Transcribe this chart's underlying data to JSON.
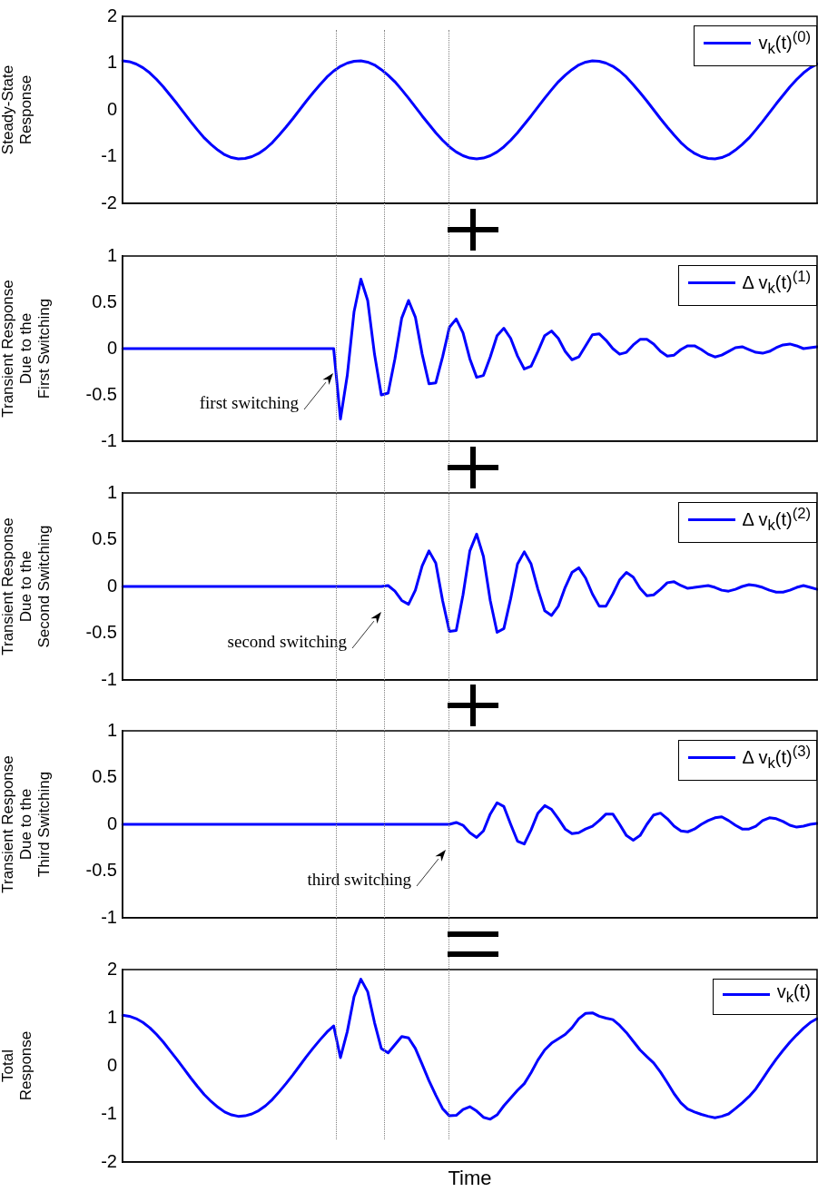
{
  "chart_data": [
    {
      "type": "line",
      "ylabel": "Steady-State\nResponse",
      "ylim": [
        -2,
        2
      ],
      "yticks": [
        -2,
        -1,
        0,
        1,
        2
      ],
      "legend": "top right",
      "categories": [
        null,
        null,
        null,
        null,
        null,
        null,
        null,
        null,
        null,
        null,
        null,
        null,
        null,
        null,
        null,
        null,
        null,
        null,
        null,
        null,
        null,
        null,
        null,
        null,
        null,
        null,
        null,
        null,
        null,
        null,
        null,
        null,
        null,
        null,
        null,
        null,
        null,
        null,
        null,
        null,
        null,
        null,
        null,
        null,
        null,
        null,
        null,
        null,
        null,
        null,
        null,
        null,
        null,
        null,
        null,
        null,
        null,
        null,
        null,
        null,
        null,
        null,
        null,
        null,
        null,
        null,
        null,
        null,
        null,
        null,
        null,
        null,
        null,
        null,
        null,
        null,
        null,
        null,
        null,
        null,
        null,
        null,
        null,
        null,
        null,
        null,
        null,
        null,
        null,
        null,
        null,
        null,
        null,
        null,
        null,
        null,
        null,
        null,
        null,
        null,
        null,
        null,
        null
      ],
      "series": [
        {
          "name": "v$_{k}$(t)$^{(0)}$",
          "color": "#0000ff",
          "values": [
            1.05,
            1.03,
            0.98,
            0.9,
            0.79,
            0.65,
            0.49,
            0.31,
            0.13,
            -0.06,
            -0.25,
            -0.43,
            -0.6,
            -0.74,
            -0.86,
            -0.96,
            -1.02,
            -1.05,
            -1.04,
            -1.0,
            -0.93,
            -0.83,
            -0.7,
            -0.54,
            -0.37,
            -0.19,
            0,
            0.19,
            0.37,
            0.54,
            0.7,
            0.83,
            0.93,
            1.0,
            1.04,
            1.05,
            1.02,
            0.96,
            0.86,
            0.74,
            0.6,
            0.43,
            0.25,
            0.06,
            -0.13,
            -0.31,
            -0.49,
            -0.65,
            -0.79,
            -0.9,
            -0.98,
            -1.03,
            -1.05,
            -1.03,
            -0.98,
            -0.9,
            -0.79,
            -0.65,
            -0.49,
            -0.31,
            -0.13,
            0.06,
            0.25,
            0.43,
            0.6,
            0.74,
            0.86,
            0.96,
            1.02,
            1.05,
            1.04,
            1.0,
            0.93,
            0.83,
            0.7,
            0.54,
            0.37,
            0.19,
            0,
            -0.19,
            -0.37,
            -0.54,
            -0.7,
            -0.83,
            -0.93,
            -1.0,
            -1.04,
            -1.05,
            -1.02,
            -0.96,
            -0.86,
            -0.74,
            -0.6,
            -0.43,
            -0.25,
            -0.06,
            0.13,
            0.31,
            0.49,
            0.65,
            0.79,
            0.9,
            0.98
          ]
        }
      ]
    },
    {
      "type": "line",
      "ylabel": "Transient Response\nDue to the\nFirst Switching",
      "ylim": [
        -1,
        1
      ],
      "yticks": [
        -1,
        -0.5,
        0,
        0.5,
        1
      ],
      "legend": "top right",
      "categories": [
        null,
        null,
        null,
        null,
        null,
        null,
        null,
        null,
        null,
        null,
        null,
        null,
        null,
        null,
        null,
        null,
        null,
        null,
        null,
        null,
        null,
        null,
        null,
        null,
        null,
        null,
        null,
        null,
        null,
        null,
        null,
        null,
        null,
        null,
        null,
        null,
        null,
        null,
        null,
        null,
        null,
        null,
        null,
        null,
        null,
        null,
        null,
        null,
        null,
        null,
        null,
        null,
        null,
        null,
        null,
        null,
        null,
        null,
        null,
        null,
        null,
        null,
        null,
        null,
        null,
        null,
        null,
        null,
        null,
        null,
        null,
        null,
        null,
        null,
        null,
        null,
        null,
        null,
        null,
        null,
        null,
        null,
        null,
        null,
        null,
        null,
        null,
        null,
        null,
        null,
        null,
        null,
        null,
        null,
        null,
        null,
        null,
        null,
        null,
        null,
        null,
        null,
        null
      ],
      "annotations": [
        "first switching"
      ],
      "series": [
        {
          "name": "Δ v$_{k}$(t)$^{(1)}$",
          "color": "#0000ff",
          "values": [
            0,
            0,
            0,
            0,
            0,
            0,
            0,
            0,
            0,
            0,
            0,
            0,
            0,
            0,
            0,
            0,
            0,
            0,
            0,
            0,
            0,
            0,
            0,
            0,
            0,
            0,
            0,
            0,
            0,
            0,
            0,
            0,
            -0.76,
            -0.29,
            0.4,
            0.75,
            0.52,
            -0.06,
            -0.5,
            -0.48,
            -0.11,
            0.33,
            0.52,
            0.34,
            -0.06,
            -0.38,
            -0.37,
            -0.09,
            0.23,
            0.32,
            0.17,
            -0.11,
            -0.31,
            -0.29,
            -0.09,
            0.14,
            0.22,
            0.11,
            -0.08,
            -0.22,
            -0.19,
            -0.03,
            0.14,
            0.19,
            0.11,
            -0.03,
            -0.12,
            -0.09,
            0.03,
            0.15,
            0.16,
            0.09,
            0,
            -0.06,
            -0.04,
            0.04,
            0.1,
            0.1,
            0.05,
            -0.03,
            -0.08,
            -0.07,
            -0.01,
            0.03,
            0.03,
            -0.01,
            -0.06,
            -0.09,
            -0.07,
            -0.03,
            0.01,
            0.02,
            -0.01,
            -0.04,
            -0.05,
            -0.03,
            0.01,
            0.04,
            0.05,
            0.03,
            0,
            0.01,
            0.02
          ]
        }
      ]
    },
    {
      "type": "line",
      "ylabel": "Transient Response\nDue to the\nSecond Switching",
      "ylim": [
        -1,
        1
      ],
      "yticks": [
        -1,
        -0.5,
        0,
        0.5,
        1
      ],
      "legend": "top right",
      "categories": [
        null,
        null,
        null,
        null,
        null,
        null,
        null,
        null,
        null,
        null,
        null,
        null,
        null,
        null,
        null,
        null,
        null,
        null,
        null,
        null,
        null,
        null,
        null,
        null,
        null,
        null,
        null,
        null,
        null,
        null,
        null,
        null,
        null,
        null,
        null,
        null,
        null,
        null,
        null,
        null,
        null,
        null,
        null,
        null,
        null,
        null,
        null,
        null,
        null,
        null,
        null,
        null,
        null,
        null,
        null,
        null,
        null,
        null,
        null,
        null,
        null,
        null,
        null,
        null,
        null,
        null,
        null,
        null,
        null,
        null,
        null,
        null,
        null,
        null,
        null,
        null,
        null,
        null,
        null,
        null,
        null,
        null,
        null,
        null,
        null,
        null,
        null,
        null,
        null,
        null,
        null,
        null,
        null,
        null,
        null,
        null,
        null,
        null,
        null,
        null,
        null,
        null,
        null
      ],
      "annotations": [
        "second switching"
      ],
      "series": [
        {
          "name": "Δ v$_{k}$(t)$^{(2)}$",
          "color": "#0000ff",
          "values": [
            0,
            0,
            0,
            0,
            0,
            0,
            0,
            0,
            0,
            0,
            0,
            0,
            0,
            0,
            0,
            0,
            0,
            0,
            0,
            0,
            0,
            0,
            0,
            0,
            0,
            0,
            0,
            0,
            0,
            0,
            0,
            0,
            0,
            0,
            0,
            0,
            0,
            0,
            0,
            0.01,
            -0.05,
            -0.15,
            -0.19,
            -0.04,
            0.22,
            0.38,
            0.25,
            -0.15,
            -0.48,
            -0.47,
            -0.09,
            0.38,
            0.56,
            0.32,
            -0.15,
            -0.49,
            -0.45,
            -0.13,
            0.24,
            0.37,
            0.24,
            -0.03,
            -0.26,
            -0.31,
            -0.21,
            -0.01,
            0.15,
            0.2,
            0.09,
            -0.08,
            -0.21,
            -0.21,
            -0.08,
            0.07,
            0.15,
            0.1,
            -0.02,
            -0.1,
            -0.09,
            -0.03,
            0.04,
            0.05,
            0.01,
            -0.02,
            -0.01,
            0,
            0.01,
            -0.01,
            -0.04,
            -0.05,
            -0.03,
            0,
            0.02,
            0.01,
            -0.01,
            -0.04,
            -0.06,
            -0.06,
            -0.04,
            -0.01,
            0.01,
            -0.01,
            -0.03
          ]
        }
      ]
    },
    {
      "type": "line",
      "ylabel": "Transient Response\nDue to the\nThird Switching",
      "ylim": [
        -1,
        1
      ],
      "yticks": [
        -1,
        -0.5,
        0,
        0.5,
        1
      ],
      "legend": "top right",
      "categories": [
        null,
        null,
        null,
        null,
        null,
        null,
        null,
        null,
        null,
        null,
        null,
        null,
        null,
        null,
        null,
        null,
        null,
        null,
        null,
        null,
        null,
        null,
        null,
        null,
        null,
        null,
        null,
        null,
        null,
        null,
        null,
        null,
        null,
        null,
        null,
        null,
        null,
        null,
        null,
        null,
        null,
        null,
        null,
        null,
        null,
        null,
        null,
        null,
        null,
        null,
        null,
        null,
        null,
        null,
        null,
        null,
        null,
        null,
        null,
        null,
        null,
        null,
        null,
        null,
        null,
        null,
        null,
        null,
        null,
        null,
        null,
        null,
        null,
        null,
        null,
        null,
        null,
        null,
        null,
        null,
        null,
        null,
        null,
        null,
        null,
        null,
        null,
        null,
        null,
        null,
        null,
        null,
        null,
        null,
        null,
        null,
        null,
        null,
        null,
        null,
        null,
        null,
        null
      ],
      "annotations": [
        "third switching"
      ],
      "series": [
        {
          "name": "Δ v$_{k}$(t)$^{(3)}$",
          "color": "#0000ff",
          "values": [
            0,
            0,
            0,
            0,
            0,
            0,
            0,
            0,
            0,
            0,
            0,
            0,
            0,
            0,
            0,
            0,
            0,
            0,
            0,
            0,
            0,
            0,
            0,
            0,
            0,
            0,
            0,
            0,
            0,
            0,
            0,
            0,
            0,
            0,
            0,
            0,
            0,
            0,
            0,
            0,
            0,
            0,
            0,
            0,
            0,
            0,
            0,
            0,
            0,
            0.02,
            -0.01,
            -0.09,
            -0.14,
            -0.07,
            0.11,
            0.23,
            0.19,
            0,
            -0.18,
            -0.21,
            -0.06,
            0.12,
            0.2,
            0.16,
            0.06,
            -0.05,
            -0.1,
            -0.09,
            -0.05,
            -0.02,
            0.04,
            0.11,
            0.11,
            0,
            -0.12,
            -0.17,
            -0.12,
            0,
            0.1,
            0.12,
            0.06,
            -0.02,
            -0.07,
            -0.08,
            -0.05,
            0,
            0.04,
            0.07,
            0.08,
            0.04,
            -0.01,
            -0.05,
            -0.05,
            -0.02,
            0.04,
            0.07,
            0.06,
            0.03,
            -0.01,
            -0.03,
            -0.02,
            0,
            0.01
          ]
        }
      ]
    },
    {
      "type": "line",
      "ylabel": "Total\nResponse",
      "xlabel": "Time",
      "ylim": [
        -2,
        2
      ],
      "yticks": [
        -2,
        -1,
        0,
        1,
        2
      ],
      "legend": "top right",
      "categories": [
        null,
        null,
        null,
        null,
        null,
        null,
        null,
        null,
        null,
        null,
        null,
        null,
        null,
        null,
        null,
        null,
        null,
        null,
        null,
        null,
        null,
        null,
        null,
        null,
        null,
        null,
        null,
        null,
        null,
        null,
        null,
        null,
        null,
        null,
        null,
        null,
        null,
        null,
        null,
        null,
        null,
        null,
        null,
        null,
        null,
        null,
        null,
        null,
        null,
        null,
        null,
        null,
        null,
        null,
        null,
        null,
        null,
        null,
        null,
        null,
        null,
        null,
        null,
        null,
        null,
        null,
        null,
        null,
        null,
        null,
        null,
        null,
        null,
        null,
        null,
        null,
        null,
        null,
        null,
        null,
        null,
        null,
        null,
        null,
        null,
        null,
        null,
        null,
        null,
        null,
        null,
        null,
        null,
        null,
        null,
        null,
        null,
        null,
        null,
        null,
        null,
        null,
        null
      ],
      "series": [
        {
          "name": "v$_{k}$(t)",
          "color": "#0000ff",
          "values": [
            1.05,
            1.03,
            0.98,
            0.9,
            0.79,
            0.65,
            0.49,
            0.31,
            0.13,
            -0.06,
            -0.25,
            -0.43,
            -0.6,
            -0.74,
            -0.86,
            -0.96,
            -1.02,
            -1.05,
            -1.04,
            -1.0,
            -0.93,
            -0.83,
            -0.7,
            -0.54,
            -0.37,
            -0.19,
            0,
            0.19,
            0.37,
            0.54,
            0.7,
            0.83,
            0.17,
            0.71,
            1.44,
            1.8,
            1.54,
            0.9,
            0.36,
            0.27,
            0.44,
            0.61,
            0.58,
            0.36,
            0.03,
            -0.31,
            -0.61,
            -0.89,
            -1.04,
            -1.03,
            -0.91,
            -0.85,
            -0.94,
            -1.07,
            -1.11,
            -1.02,
            -0.83,
            -0.67,
            -0.51,
            -0.37,
            -0.14,
            0.12,
            0.33,
            0.47,
            0.56,
            0.65,
            0.79,
            0.98,
            1.09,
            1.1,
            1.03,
            0.99,
            0.96,
            0.84,
            0.69,
            0.51,
            0.33,
            0.19,
            0.06,
            -0.13,
            -0.35,
            -0.58,
            -0.77,
            -0.9,
            -0.96,
            -1.01,
            -1.05,
            -1.08,
            -1.05,
            -1.0,
            -0.89,
            -0.77,
            -0.64,
            -0.48,
            -0.27,
            -0.06,
            0.14,
            0.32,
            0.49,
            0.64,
            0.78,
            0.9,
            0.98
          ]
        }
      ]
    }
  ]
}
